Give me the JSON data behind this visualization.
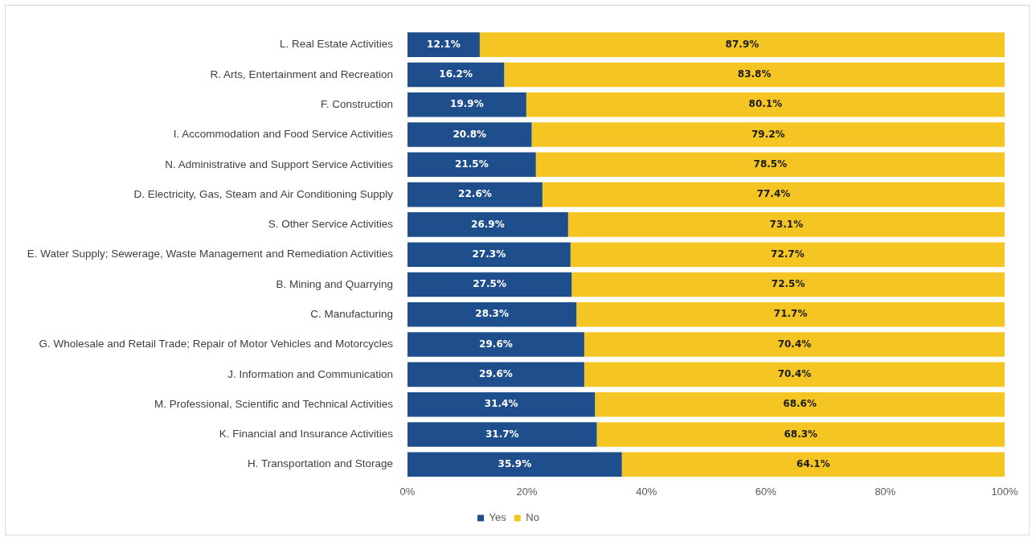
{
  "chart_data": {
    "type": "bar",
    "orientation": "horizontal",
    "stacked": true,
    "categories": [
      "L. Real Estate Activities",
      "R. Arts, Entertainment and Recreation",
      "F. Construction",
      "I. Accommodation and Food Service Activities",
      "N. Administrative and Support Service Activities",
      "D. Electricity, Gas, Steam and Air Conditioning Supply",
      "S. Other Service Activities",
      "E. Water Supply; Sewerage, Waste Management and Remediation Activities",
      "B. Mining and Quarrying",
      "C. Manufacturing",
      "G. Wholesale and Retail Trade; Repair of Motor Vehicles and Motorcycles",
      "J. Information and Communication",
      "M. Professional, Scientific and Technical Activities",
      "K. Financial and Insurance Activities",
      "H. Transportation and Storage"
    ],
    "series": [
      {
        "name": "Yes",
        "color": "#1f4e8c",
        "values": [
          12.1,
          16.2,
          19.9,
          20.8,
          21.5,
          22.6,
          26.9,
          27.3,
          27.5,
          28.3,
          29.6,
          29.6,
          31.4,
          31.7,
          35.9
        ],
        "value_labels": [
          "12.1%",
          "16.2%",
          "19.9%",
          "20.8%",
          "21.5%",
          "22.6%",
          "26.9%",
          "27.3%",
          "27.5%",
          "28.3%",
          "29.6%",
          "29.6%",
          "31.4%",
          "31.7%",
          "35.9%"
        ]
      },
      {
        "name": "No",
        "color": "#f5c623",
        "values": [
          87.9,
          83.8,
          80.1,
          79.2,
          78.5,
          77.4,
          73.1,
          72.7,
          72.5,
          71.7,
          70.4,
          70.4,
          68.6,
          68.3,
          64.1
        ],
        "value_labels": [
          "87.9%",
          "83.8%",
          "80.1%",
          "79.2%",
          "78.5%",
          "77.4%",
          "73.1%",
          "72.7%",
          "72.5%",
          "71.7%",
          "70.4%",
          "70.4%",
          "68.6%",
          "68.3%",
          "64.1%"
        ]
      }
    ],
    "xlim": [
      0,
      100
    ],
    "xticks": [
      {
        "value": 0,
        "label": "0%"
      },
      {
        "value": 20,
        "label": "20%"
      },
      {
        "value": 40,
        "label": "40%"
      },
      {
        "value": 60,
        "label": "60%"
      },
      {
        "value": 80,
        "label": "80%"
      },
      {
        "value": 100,
        "label": "100%"
      }
    ],
    "grid": false,
    "legend": "bottom"
  }
}
